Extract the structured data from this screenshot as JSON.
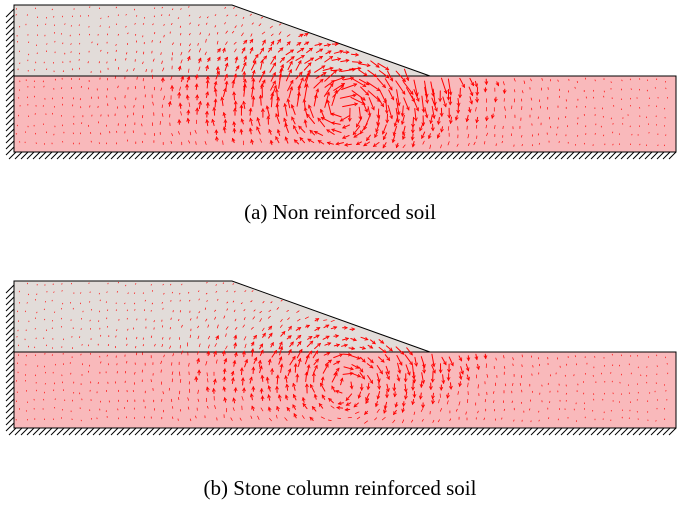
{
  "figures": [
    {
      "id": "a",
      "caption": "(a) Non reinforced soil",
      "displacement_intensity": 1.0
    },
    {
      "id": "b",
      "caption": "(b) Stone column reinforced soil",
      "displacement_intensity": 0.6
    }
  ],
  "colors": {
    "embankment_fill": "#e2dcd9",
    "foundation_fill": "#f9b9bb",
    "vector_color": "#ff0000",
    "outline": "#000000"
  }
}
